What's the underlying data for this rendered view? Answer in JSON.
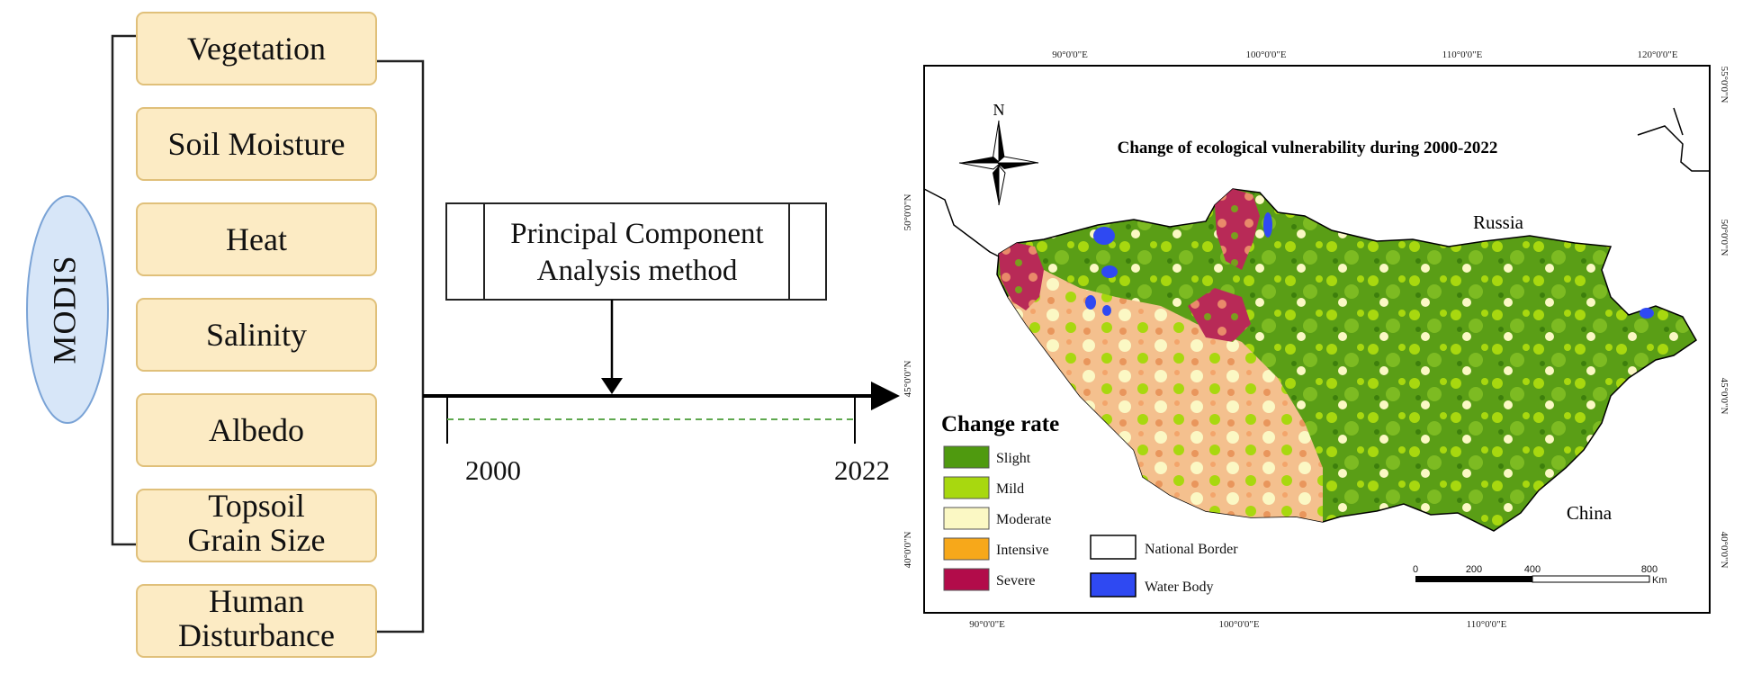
{
  "modis": {
    "label": "MODIS"
  },
  "indicators": [
    {
      "lines": [
        "Vegetation"
      ]
    },
    {
      "lines": [
        "Soil Moisture"
      ]
    },
    {
      "lines": [
        "Heat"
      ]
    },
    {
      "lines": [
        "Salinity"
      ]
    },
    {
      "lines": [
        "Albedo"
      ]
    },
    {
      "lines": [
        "Topsoil",
        "Grain Size"
      ]
    },
    {
      "lines": [
        "Human",
        "Disturbance"
      ]
    }
  ],
  "pca": {
    "line1": "Principal Component",
    "line2": "Analysis method"
  },
  "timeline": {
    "start": "2000",
    "end": "2022"
  },
  "map": {
    "title": "Change of ecological vulnerability during 2000-2022",
    "north": "N",
    "countries": {
      "north": "Russia",
      "south": "China"
    },
    "coords": {
      "top": [
        "90°0'0\"E",
        "100°0'0\"E",
        "110°0'0\"E",
        "120°0'0\"E"
      ],
      "bottom": [
        "90°0'0\"E",
        "100°0'0\"E",
        "110°0'0\"E"
      ],
      "left": [
        "50°0'0\"N",
        "45°0'0\"N",
        "40°0'0\"N"
      ],
      "right": [
        "55°0'0\"N",
        "50°0'0\"N",
        "45°0'0\"N",
        "40°0'0\"N"
      ]
    },
    "legend": {
      "title": "Change rate",
      "classes": [
        {
          "label": "Slight",
          "color": "#4f9a0f"
        },
        {
          "label": "Mild",
          "color": "#a8d80f"
        },
        {
          "label": "Moderate",
          "color": "#fbf8c4"
        },
        {
          "label": "Intensive",
          "color": "#f7a81a"
        },
        {
          "label": "Severe",
          "color": "#b20c4a"
        }
      ],
      "extra": [
        {
          "label": "National Border",
          "color": "#ffffff"
        },
        {
          "label": "Water Body",
          "color": "#2f49f2"
        }
      ]
    },
    "scale": {
      "ticks": [
        "0",
        "200",
        "400",
        "800"
      ],
      "unit": "Km"
    }
  },
  "colors": {
    "box_fill": "#fcebc4",
    "box_stroke": "#e0c07a",
    "modis_fill": "#d7e6f8",
    "modis_stroke": "#7aa3d6",
    "dashed_line": "#5fa84f"
  }
}
